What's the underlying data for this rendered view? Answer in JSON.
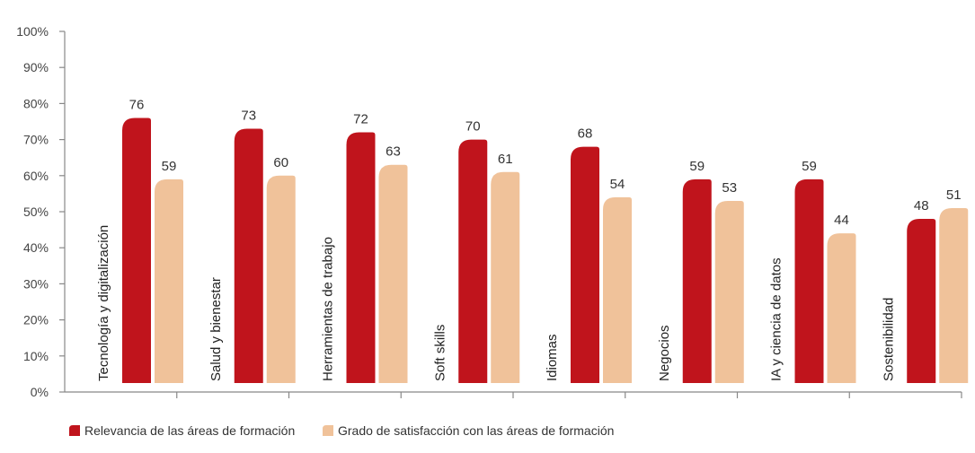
{
  "chart_data": {
    "type": "bar",
    "categories": [
      "Tecnología y digitalización",
      "Salud y bienestar",
      "Herramientas de trabajo",
      "Soft skills",
      "Idiomas",
      "Negocios",
      "IA y ciencia de datos",
      "Sostenibilidad"
    ],
    "series": [
      {
        "name": "Relevancia de las áreas de formación",
        "values": [
          76,
          73,
          72,
          70,
          68,
          59,
          59,
          48
        ],
        "color": "#c0141c"
      },
      {
        "name": "Grado de satisfacción con las áreas de formación",
        "values": [
          59,
          60,
          63,
          61,
          54,
          53,
          44,
          51
        ],
        "color": "#f0c29a"
      }
    ],
    "ylim": [
      0,
      100
    ],
    "yticks": [
      "0%",
      "10%",
      "20%",
      "30%",
      "40%",
      "50%",
      "60%",
      "70%",
      "80%",
      "90%",
      "100%"
    ],
    "legend_position": "bottom-left",
    "grid": false
  }
}
